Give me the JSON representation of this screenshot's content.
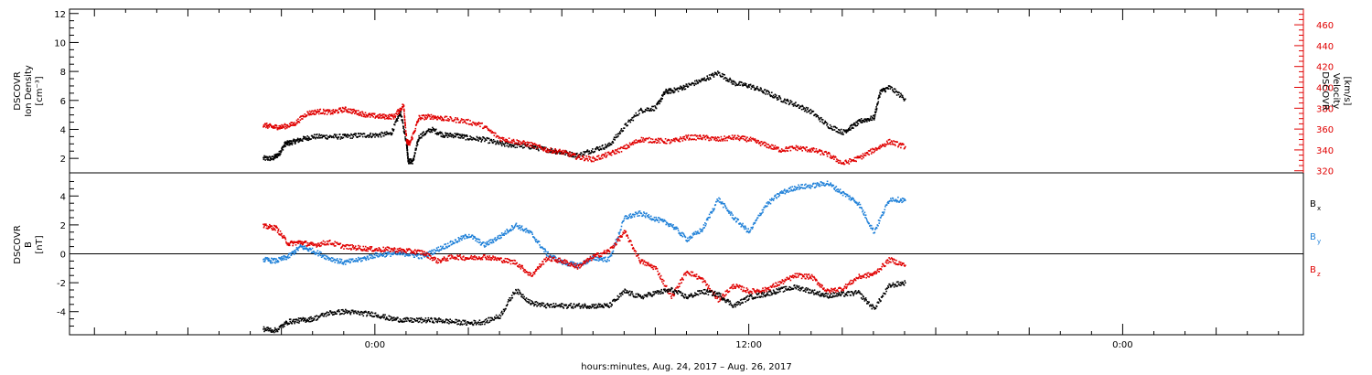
{
  "chart_data": [
    {
      "type": "scatter",
      "panel": "plasma",
      "ylabel_lines": [
        "DSCOVR",
        "Ion Density",
        "[cm⁻³]"
      ],
      "ylim": [
        1,
        12.3
      ],
      "yticks": [
        2,
        4,
        6,
        8,
        10,
        12
      ],
      "y2label_lines": [
        "DSCOVR",
        "Velocity",
        "[km/s]"
      ],
      "y2lim": [
        318,
        475
      ],
      "y2ticks": [
        320,
        340,
        360,
        380,
        400,
        420,
        440,
        460
      ],
      "y2_color": "#e00000",
      "series": [
        {
          "axis": "left",
          "color": "#000000",
          "x": [
            -3.6,
            -3.3,
            -3.1,
            -2.9,
            -2.7,
            -2.4,
            -2.0,
            -1.5,
            -1.0,
            -0.5,
            0.0,
            0.5,
            0.8,
            1.0,
            1.05,
            1.2,
            1.4,
            1.8,
            2.2,
            2.6,
            3.0,
            3.5,
            4.0,
            4.5,
            5.0,
            5.5,
            6.0,
            6.5,
            7.0,
            7.5,
            8.0,
            8.5,
            9.0,
            9.3,
            9.6,
            10.0,
            10.5,
            11.0,
            11.5,
            12.0,
            12.5,
            13.0,
            13.5,
            14.0,
            14.5,
            15.0,
            15.3,
            15.6,
            16.0,
            16.2,
            16.5,
            17.0
          ],
          "y": [
            2.0,
            2.0,
            2.3,
            3.0,
            3.1,
            3.3,
            3.5,
            3.5,
            3.5,
            3.6,
            3.6,
            3.7,
            5.2,
            3.0,
            1.8,
            1.8,
            3.5,
            4.0,
            3.6,
            3.6,
            3.4,
            3.3,
            3.0,
            2.9,
            2.8,
            2.6,
            2.4,
            2.2,
            2.6,
            2.9,
            4.2,
            5.3,
            5.5,
            6.6,
            6.7,
            7.0,
            7.4,
            7.9,
            7.2,
            7.0,
            6.6,
            6.1,
            5.7,
            5.2,
            4.3,
            3.8,
            4.2,
            4.6,
            4.8,
            6.6,
            6.9,
            6.1
          ]
        },
        {
          "axis": "right",
          "color": "#e00000",
          "x": [
            -3.6,
            -3.3,
            -3.0,
            -2.6,
            -2.2,
            -1.8,
            -1.4,
            -1.0,
            -0.6,
            -0.2,
            0.2,
            0.6,
            0.9,
            1.0,
            1.1,
            1.4,
            1.8,
            2.2,
            2.8,
            3.4,
            4.0,
            4.5,
            5.0,
            5.5,
            6.0,
            6.5,
            7.0,
            7.5,
            8.0,
            8.5,
            9.0,
            9.5,
            10.0,
            10.5,
            11.0,
            11.5,
            12.0,
            12.5,
            13.0,
            13.5,
            14.0,
            14.5,
            15.0,
            15.5,
            16.0,
            16.5,
            17.0
          ],
          "y": [
            364,
            362,
            362,
            365,
            375,
            377,
            376,
            379,
            376,
            373,
            372,
            372,
            383,
            348,
            346,
            371,
            372,
            370,
            368,
            364,
            351,
            348,
            345,
            340,
            338,
            333,
            331,
            336,
            342,
            350,
            349,
            348,
            352,
            352,
            350,
            352,
            350,
            345,
            340,
            342,
            340,
            336,
            327,
            332,
            340,
            348,
            343
          ]
        }
      ]
    },
    {
      "type": "scatter",
      "panel": "magnetic",
      "ylabel_lines": [
        "DSCOVR",
        "B",
        "[nT]"
      ],
      "ylim": [
        -5.6,
        5.6
      ],
      "yticks": [
        -4,
        -2,
        0,
        2,
        4
      ],
      "zero_line": true,
      "series": [
        {
          "name_main": "B",
          "name_sub": "x",
          "color": "#000000",
          "x": [
            -3.6,
            -3.2,
            -2.8,
            -2.4,
            -2.0,
            -1.5,
            -1.0,
            -0.5,
            0.0,
            0.5,
            1.0,
            1.5,
            2.0,
            2.5,
            3.0,
            3.5,
            4.0,
            4.5,
            5.0,
            5.5,
            6.0,
            6.5,
            7.0,
            7.5,
            8.0,
            8.5,
            9.0,
            9.5,
            10.0,
            10.5,
            11.0,
            11.5,
            12.0,
            12.5,
            13.0,
            13.5,
            14.0,
            14.5,
            15.0,
            15.5,
            16.0,
            16.5,
            17.0
          ],
          "y": [
            -5.2,
            -5.3,
            -4.7,
            -4.6,
            -4.5,
            -4.1,
            -4.0,
            -4.1,
            -4.2,
            -4.5,
            -4.6,
            -4.6,
            -4.6,
            -4.7,
            -4.8,
            -4.7,
            -4.3,
            -2.5,
            -3.4,
            -3.6,
            -3.6,
            -3.6,
            -3.6,
            -3.6,
            -2.6,
            -3.0,
            -2.7,
            -2.5,
            -3.0,
            -2.6,
            -2.8,
            -3.6,
            -3.0,
            -2.8,
            -2.5,
            -2.3,
            -2.6,
            -2.9,
            -2.8,
            -2.7,
            -3.8,
            -2.2,
            -2.0
          ]
        },
        {
          "name_main": "B",
          "name_sub": "y",
          "color": "#1f80d8",
          "x": [
            -3.6,
            -3.2,
            -2.8,
            -2.4,
            -2.0,
            -1.5,
            -1.0,
            -0.5,
            0.0,
            0.5,
            1.0,
            1.5,
            2.0,
            2.5,
            3.0,
            3.5,
            4.0,
            4.5,
            5.0,
            5.5,
            6.0,
            6.5,
            7.0,
            7.5,
            8.0,
            8.5,
            9.0,
            9.5,
            10.0,
            10.5,
            11.0,
            11.5,
            12.0,
            12.5,
            13.0,
            13.5,
            14.0,
            14.5,
            15.0,
            15.5,
            16.0,
            16.5,
            17.0
          ],
          "y": [
            -0.4,
            -0.5,
            -0.2,
            0.5,
            0.2,
            -0.3,
            -0.6,
            -0.4,
            -0.1,
            0.0,
            0.0,
            -0.2,
            0.3,
            0.8,
            1.3,
            0.6,
            1.2,
            2.0,
            1.4,
            0.0,
            -0.6,
            -0.8,
            -0.3,
            -0.4,
            2.5,
            2.8,
            2.4,
            2.0,
            1.0,
            1.7,
            3.8,
            2.5,
            1.5,
            3.3,
            4.2,
            4.6,
            4.7,
            4.9,
            4.2,
            3.5,
            1.5,
            3.8,
            3.7
          ]
        },
        {
          "name_main": "B",
          "name_sub": "z",
          "color": "#e00000",
          "x": [
            -3.6,
            -3.2,
            -2.8,
            -2.4,
            -2.0,
            -1.5,
            -1.0,
            -0.5,
            0.0,
            0.5,
            1.0,
            1.5,
            2.0,
            2.5,
            3.0,
            3.5,
            4.0,
            4.5,
            5.0,
            5.5,
            6.0,
            6.5,
            7.0,
            7.5,
            8.0,
            8.5,
            9.0,
            9.5,
            10.0,
            10.5,
            11.0,
            11.5,
            12.0,
            12.5,
            13.0,
            13.5,
            14.0,
            14.5,
            15.0,
            15.5,
            16.0,
            16.5,
            17.0
          ],
          "y": [
            1.9,
            1.8,
            0.7,
            0.8,
            0.6,
            0.8,
            0.5,
            0.4,
            0.3,
            0.3,
            0.2,
            0.1,
            -0.5,
            -0.2,
            -0.3,
            -0.2,
            -0.4,
            -0.6,
            -1.5,
            -0.3,
            -0.5,
            -0.9,
            -0.2,
            0.2,
            1.5,
            -0.5,
            -1.0,
            -3.0,
            -1.2,
            -1.8,
            -3.2,
            -2.2,
            -2.6,
            -2.5,
            -2.0,
            -1.5,
            -1.6,
            -2.6,
            -2.4,
            -1.6,
            -1.4,
            -0.4,
            -0.8
          ]
        }
      ]
    }
  ],
  "xaxis": {
    "range_hours": [
      -9.8,
      29.8
    ],
    "major_tick_labels": [
      {
        "hour": 0,
        "label": "0:00"
      },
      {
        "hour": 12,
        "label": "12:00"
      },
      {
        "hour": 24,
        "label": "0:00"
      }
    ],
    "xlabel": "hours:minutes, Aug. 24, 2017 – Aug. 26, 2017"
  }
}
